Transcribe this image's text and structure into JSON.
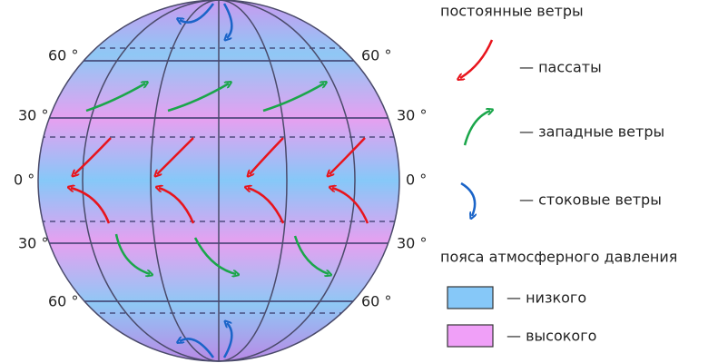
{
  "latitude_labels": [
    "60 °",
    "30 °",
    "0 °",
    "30 °",
    "60 °"
  ],
  "legend": {
    "winds_title": "постоянные ветры",
    "winds": [
      "— пассаты",
      "— западные ветры",
      "— стоковые ветры"
    ],
    "pressure_title": "пояса атмосферного давления",
    "pressure": [
      "— низкого",
      "— высокого"
    ]
  }
}
